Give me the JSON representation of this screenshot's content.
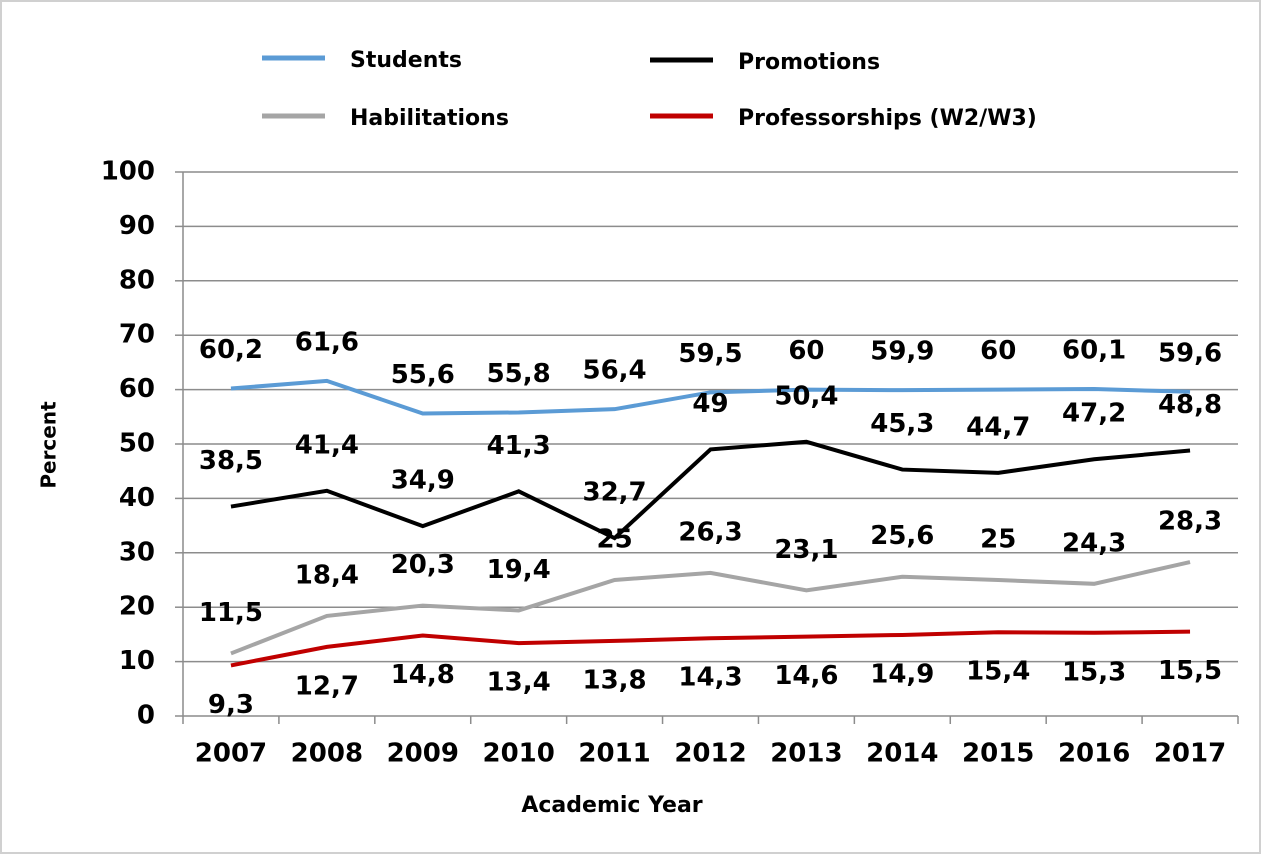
{
  "chart_data": {
    "type": "line",
    "xlabel": "Academic Year",
    "ylabel": "Percent",
    "categories": [
      "2007",
      "2008",
      "2009",
      "2010",
      "2011",
      "2012",
      "2013",
      "2014",
      "2015",
      "2016",
      "2017"
    ],
    "series": [
      {
        "name": "Students",
        "color": "#5b9bd5",
        "values": [
          60.2,
          61.6,
          55.6,
          55.8,
          56.4,
          59.5,
          60,
          59.9,
          60,
          60.1,
          59.6
        ],
        "value_labels": [
          "60,2",
          "61,6",
          "55,6",
          "55,8",
          "56,4",
          "59,5",
          "60",
          "59,9",
          "60",
          "60,1",
          "59,6"
        ]
      },
      {
        "name": "Promotions",
        "color": "#000000",
        "values": [
          38.5,
          41.4,
          34.9,
          41.3,
          32.7,
          49,
          50.4,
          45.3,
          44.7,
          47.2,
          48.8
        ],
        "value_labels": [
          "38,5",
          "41,4",
          "34,9",
          "41,3",
          "32,7",
          "49",
          "50,4",
          "45,3",
          "44,7",
          "47,2",
          "48,8"
        ]
      },
      {
        "name": "Habilitations",
        "color": "#a5a5a5",
        "values": [
          11.5,
          18.4,
          20.3,
          19.4,
          25,
          26.3,
          23.1,
          25.6,
          25,
          24.3,
          28.3
        ],
        "value_labels": [
          "11,5",
          "18,4",
          "20,3",
          "19,4",
          "25",
          "26,3",
          "23,1",
          "25,6",
          "25",
          "24,3",
          "28,3"
        ]
      },
      {
        "name": "Professorships (W2/W3)",
        "color": "#c00000",
        "values": [
          9.3,
          12.7,
          14.8,
          13.4,
          13.8,
          14.3,
          14.6,
          14.9,
          15.4,
          15.3,
          15.5
        ],
        "value_labels": [
          "9,3",
          "12,7",
          "14,8",
          "13,4",
          "13,8",
          "14,3",
          "14,6",
          "14,9",
          "15,4",
          "15,3",
          "15,5"
        ]
      }
    ],
    "ylim": [
      0,
      100
    ],
    "yticks": [
      0,
      10,
      20,
      30,
      40,
      50,
      60,
      70,
      80,
      90,
      100
    ],
    "grid": true
  }
}
